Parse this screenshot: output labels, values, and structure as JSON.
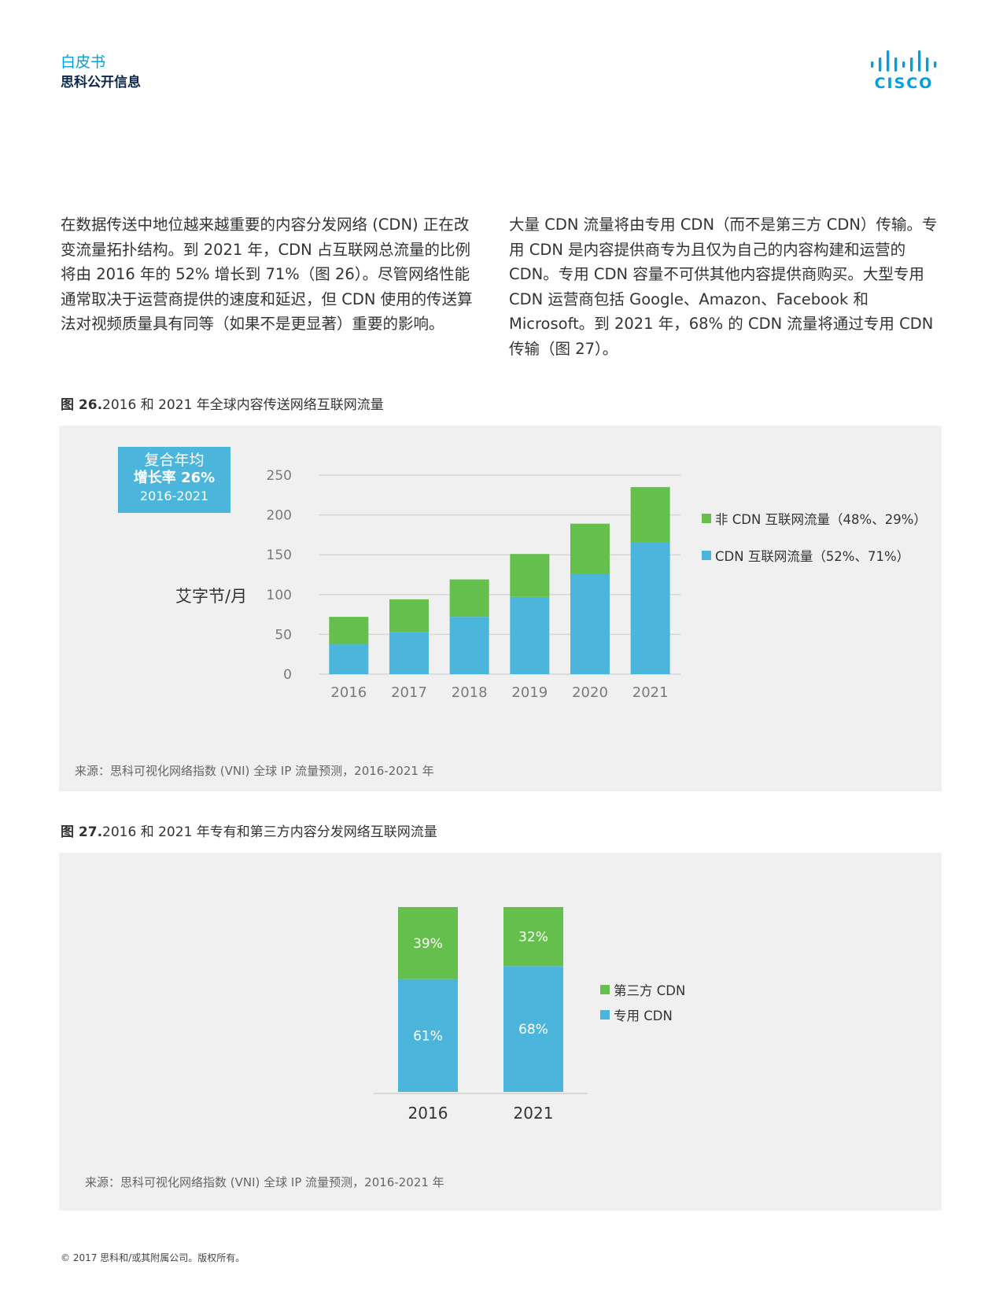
{
  "header": {
    "doc_type": "白皮书",
    "classification": "思科公开信息",
    "logo_text": "CISCO"
  },
  "body": {
    "left_paragraph": "在数据传送中地位越来越重要的内容分发网络 (CDN) 正在改变流量拓扑结构。到 2021 年，CDN 占互联网总流量的比例将由 2016 年的 52% 增长到 71%（图 26）。尽管网络性能通常取决于运营商提供的速度和延迟，但 CDN 使用的传送算法对视频质量具有同等（如果不是更显著）重要的影响。",
    "right_paragraph": "大量 CDN 流量将由专用 CDN（而不是第三方 CDN）传输。专用 CDN 是内容提供商专为且仅为自己的内容构建和运营的 CDN。专用 CDN 容量不可供其他内容提供商购买。大型专用 CDN 运营商包括 Google、Amazon、Facebook 和 Microsoft。到 2021 年，68% 的 CDN 流量将通过专用 CDN 传输（图 27）。"
  },
  "figure26": {
    "caption_label": "图 26.",
    "caption_text": "2016 和 2021 年全球内容传送网络互联网流量",
    "cagr_line1": "复合年均",
    "cagr_line2": "增长率 26%",
    "cagr_line3": "2016-2021",
    "source": "来源：思科可视化网络指数 (VNI) 全球 IP 流量预测，2016-2021 年"
  },
  "figure27": {
    "caption_label": "图 27.",
    "caption_text": "2016 和 2021 年专有和第三方内容分发网络互联网流量",
    "source": "来源：思科可视化网络指数 (VNI) 全球 IP 流量预测，2016-2021 年"
  },
  "chart_data": [
    {
      "type": "bar",
      "stacked": true,
      "title": "",
      "ylabel": "艾字节/月",
      "ylim": [
        0,
        250
      ],
      "yticks": [
        0,
        50,
        100,
        150,
        200,
        250
      ],
      "categories": [
        "2016",
        "2017",
        "2018",
        "2019",
        "2020",
        "2021"
      ],
      "series": [
        {
          "name": "CDN 互联网流量（52%、71%）",
          "color": "#4cb5dc",
          "values": [
            38,
            53,
            72,
            97,
            126,
            166
          ]
        },
        {
          "name": "非 CDN 互联网流量（48%、29%）",
          "color": "#65bf4c",
          "values": [
            34,
            41,
            47,
            54,
            63,
            69
          ]
        }
      ],
      "legend": "right",
      "grid": true
    },
    {
      "type": "bar",
      "stacked": true,
      "title": "",
      "categories": [
        "2016",
        "2021"
      ],
      "series": [
        {
          "name": "专用 CDN",
          "color": "#4cb5dc",
          "values": [
            61,
            68
          ],
          "labels": [
            "61%",
            "68%"
          ]
        },
        {
          "name": "第三方 CDN",
          "color": "#65bf4c",
          "values": [
            39,
            32
          ],
          "labels": [
            "39%",
            "32%"
          ]
        }
      ],
      "legend": "right",
      "grid": false
    }
  ],
  "footer": "© 2017 思科和/或其附属公司。版权所有。"
}
